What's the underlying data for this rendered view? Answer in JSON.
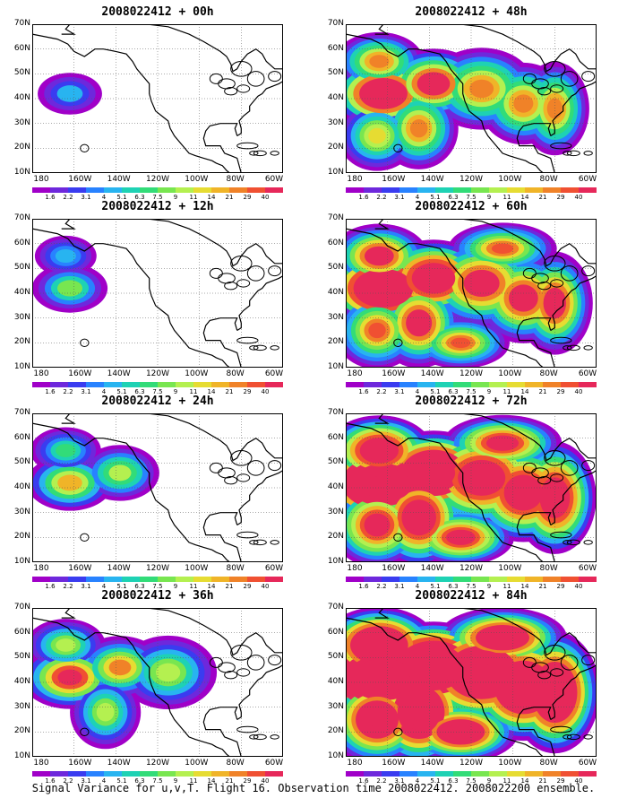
{
  "panels": [
    {
      "title": "2008022412 + 00h",
      "level": 0
    },
    {
      "title": "2008022412 + 48h",
      "level": 4
    },
    {
      "title": "2008022412 + 12h",
      "level": 1
    },
    {
      "title": "2008022412 + 60h",
      "level": 5
    },
    {
      "title": "2008022412 + 24h",
      "level": 2
    },
    {
      "title": "2008022412 + 72h",
      "level": 6
    },
    {
      "title": "2008022412 + 36h",
      "level": 3
    },
    {
      "title": "2008022412 + 84h",
      "level": 7
    }
  ],
  "y_ticks": [
    "70N",
    "60N",
    "50N",
    "40N",
    "30N",
    "20N",
    "10N"
  ],
  "x_ticks": [
    "180",
    "160W",
    "140W",
    "120W",
    "100W",
    "80W",
    "60W"
  ],
  "colorbar": {
    "colors": [
      "#a000c8",
      "#6e28dc",
      "#3a3cf0",
      "#2882ff",
      "#28b4f0",
      "#1ed2b4",
      "#32dc78",
      "#78e650",
      "#b4f050",
      "#e6dc32",
      "#f0b428",
      "#f08228",
      "#f05032",
      "#e6285a"
    ],
    "labels": [
      "1.6",
      "2.2",
      "3.1",
      "4",
      "5.1",
      "6.3",
      "7.5",
      "9",
      "11",
      "14",
      "21",
      "29",
      "40"
    ]
  },
  "caption": "Signal Variance for u,v,T. Flight 16. Observation time 2008022412. 2008022200 ensemble."
}
